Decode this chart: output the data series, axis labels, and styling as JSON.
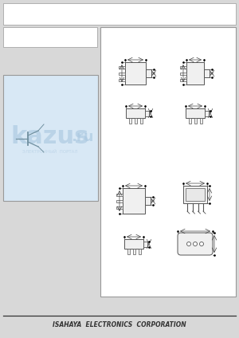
{
  "bg_color": "#d8d8d8",
  "page_bg": "#ffffff",
  "title_text": "ISAHAYA  ELECTRONICS  CORPORATION",
  "title_fontsize": 5.5,
  "watermark_text": "kazus.ru",
  "watermark_sub": "ЭЛЕКТРОННЫЙ  ПОРТАЛ",
  "panel_bg": "#e8eef5",
  "right_panel_bg": "#ffffff",
  "left_panel_bg": "#dce8f0",
  "line_color": "#555555",
  "dim_color": "#444444"
}
